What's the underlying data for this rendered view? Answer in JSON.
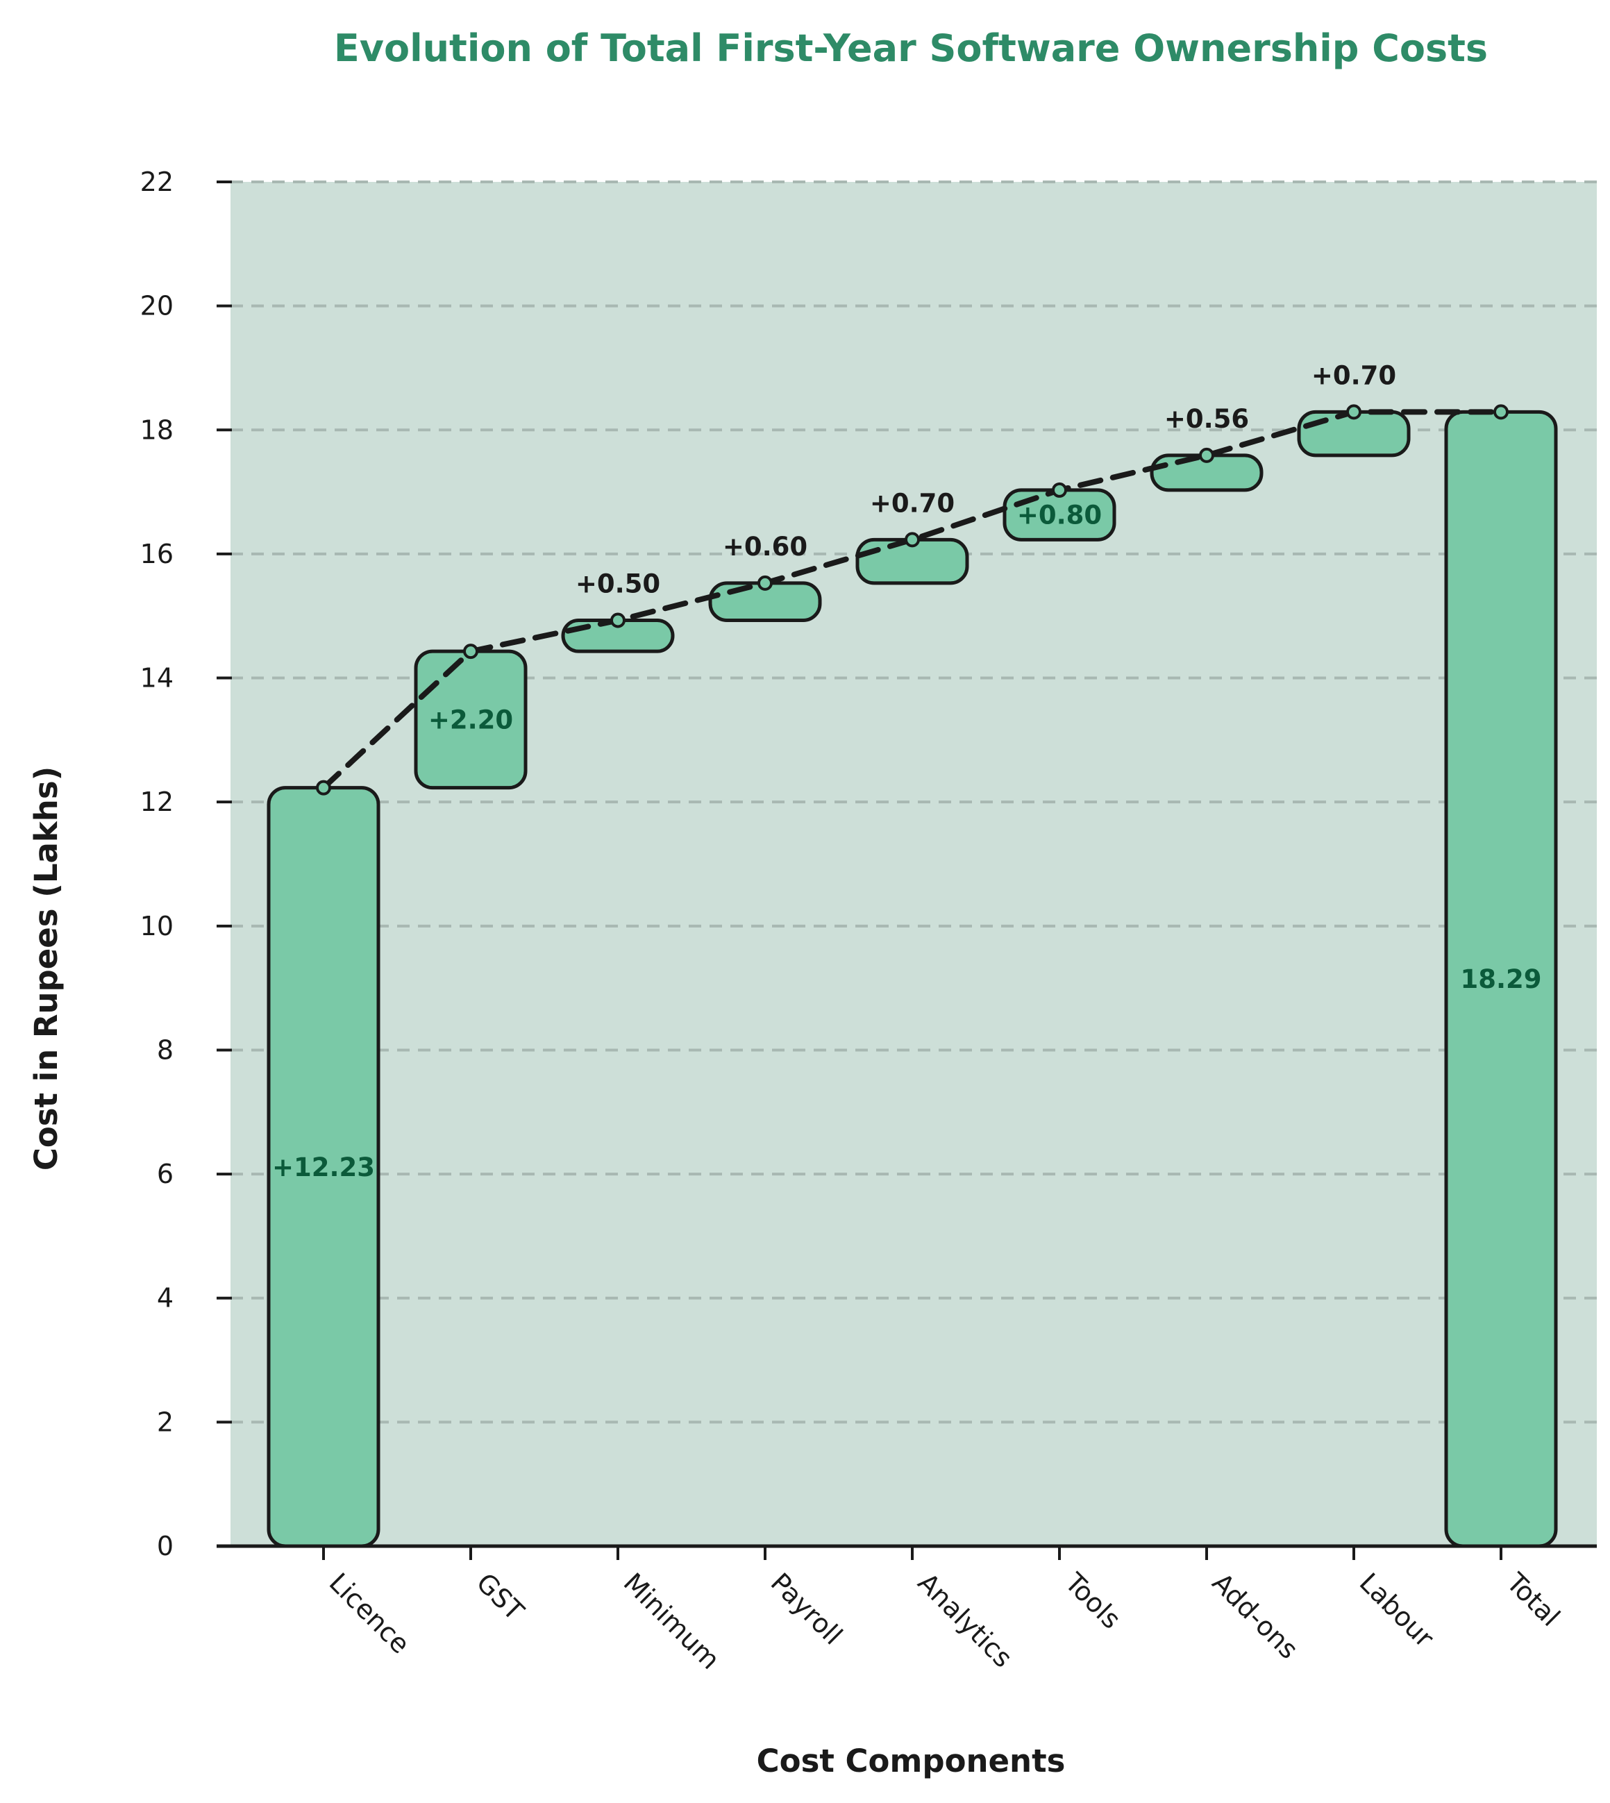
{
  "chart_data": {
    "type": "bar",
    "subtype": "waterfall",
    "title": "Evolution of Total First-Year Software Ownership Costs",
    "xlabel": "Cost Components",
    "ylabel": "Cost in Rupees (Lakhs)",
    "ylim": [
      0,
      22
    ],
    "yticks": [
      "0",
      "2",
      "4",
      "6",
      "8",
      "10",
      "12",
      "14",
      "16",
      "18",
      "20",
      "22"
    ],
    "grid": true,
    "categories": [
      "Licence",
      "GST",
      "Minimum",
      "Payroll",
      "Analytics",
      "Tools",
      "Add-ons",
      "Labour",
      "Total"
    ],
    "values": [
      12.23,
      2.2,
      0.5,
      0.6,
      0.7,
      0.8,
      0.56,
      0.7,
      18.29
    ],
    "labels": [
      "+12.23",
      "+2.20",
      "+0.50",
      "+0.60",
      "+0.70",
      "+0.80",
      "+0.56",
      "+0.70",
      "18.29"
    ],
    "label_placement": [
      "inside",
      "inside",
      "above",
      "above",
      "above",
      "inside",
      "above",
      "above",
      "inside"
    ],
    "colors": {
      "title": "#2e8b67",
      "plot_background": "#cddfd8",
      "bar_fill": "#7ac9a7",
      "bar_edge": "#1a1a1a",
      "inside_label": "#0b5a3a",
      "connector": "#1a1a1a",
      "grid": "#a8b8b2"
    }
  }
}
